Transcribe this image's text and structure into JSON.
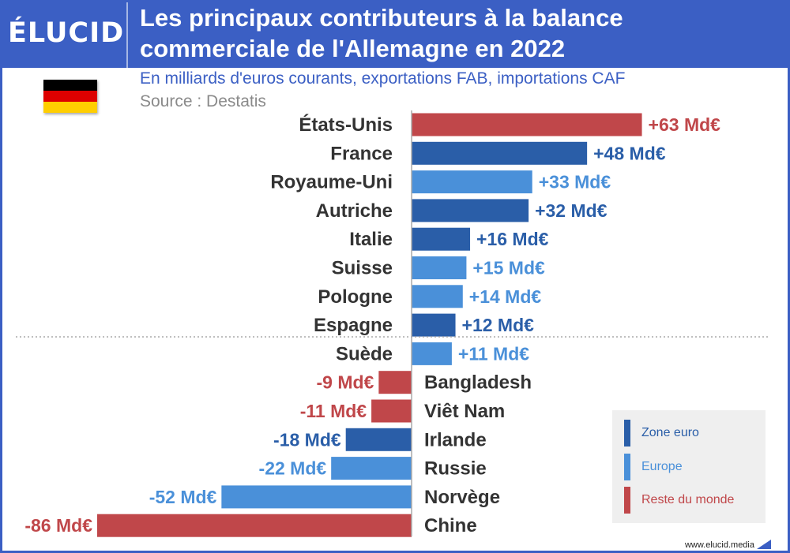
{
  "header": {
    "logo": "ÉLUCID",
    "title_line1": "Les principaux contributeurs à la balance",
    "title_line2": "commerciale de l'Allemagne en 2022",
    "subtitle": "En milliards d'euros courants, exportations FAB, importations CAF",
    "source": "Source : Destatis"
  },
  "colors": {
    "zone_euro": "#2a5ea8",
    "europe": "#4a90d9",
    "reste_du_monde": "#c0474a",
    "brand": "#3b5fc4"
  },
  "legend": [
    {
      "label": "Zone euro",
      "group": "zone_euro"
    },
    {
      "label": "Europe",
      "group": "europe"
    },
    {
      "label": "Reste du monde",
      "group": "reste_du_monde"
    }
  ],
  "chart_data": {
    "type": "bar",
    "orientation": "horizontal",
    "categories": [
      "États-Unis",
      "France",
      "Royaume-Uni",
      "Autriche",
      "Italie",
      "Suisse",
      "Pologne",
      "Espagne",
      "Suède",
      "Bangladesh",
      "Viêt Nam",
      "Irlande",
      "Russie",
      "Norvège",
      "Chine"
    ],
    "values": [
      63,
      48,
      33,
      32,
      16,
      15,
      14,
      12,
      11,
      -9,
      -11,
      -18,
      -22,
      -52,
      -86
    ],
    "value_labels": [
      "+63 Md€",
      "+48 Md€",
      "+33 Md€",
      "+32 Md€",
      "+16 Md€",
      "+15 Md€",
      "+14 Md€",
      "+12 Md€",
      "+11 Md€",
      "-9 Md€",
      "-11 Md€",
      "-18 Md€",
      "-22 Md€",
      "-52 Md€",
      "-86 Md€"
    ],
    "groups": [
      "reste_du_monde",
      "zone_euro",
      "europe",
      "zone_euro",
      "zone_euro",
      "europe",
      "europe",
      "zone_euro",
      "europe",
      "reste_du_monde",
      "reste_du_monde",
      "zone_euro",
      "europe",
      "europe",
      "reste_du_monde"
    ],
    "xlim": [
      -86,
      63
    ],
    "legend_position": "bottom-right"
  },
  "footer": {
    "website": "www.elucid.media"
  }
}
